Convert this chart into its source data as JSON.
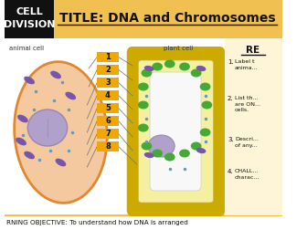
{
  "title": "TITLE: DNA and Chromosomes",
  "top_left_label1": "CELL",
  "top_left_label2": "DIVISION",
  "top_left_bg": "#111111",
  "top_left_text_color": "#ffffff",
  "header_bg": "#f0c050",
  "animal_cell_label": "animal cell",
  "plant_cell_label": "plant cell",
  "numbered_labels": [
    "1",
    "2",
    "3",
    "4",
    "5",
    "6",
    "7",
    "8"
  ],
  "label_bg": "#f0a800",
  "label_text_color": "#111111",
  "main_bg": "#ffffff",
  "bottom_text": "RNING OBJECTIVE: To understand how DNA is arranged",
  "animal_cell_bg": "#f5c9a0",
  "animal_cell_border": "#e08830",
  "nucleus_color": "#b0a0cc",
  "plant_cell_wall": "#ccaa00",
  "plant_cell_membrane": "#e8e060",
  "plant_cell_inner_bg": "#f5f0a0",
  "plant_cell_vacuole": "#f8f8f8",
  "plant_cell_nucleus": "#b0a0cc",
  "chloroplast_color": "#44aa33",
  "dots_color": "#6699bb",
  "purple_organelle": "#7755aa",
  "right_panel_bg": "#fef5d8",
  "right_panel_title": "RE",
  "line_color": "#777777"
}
